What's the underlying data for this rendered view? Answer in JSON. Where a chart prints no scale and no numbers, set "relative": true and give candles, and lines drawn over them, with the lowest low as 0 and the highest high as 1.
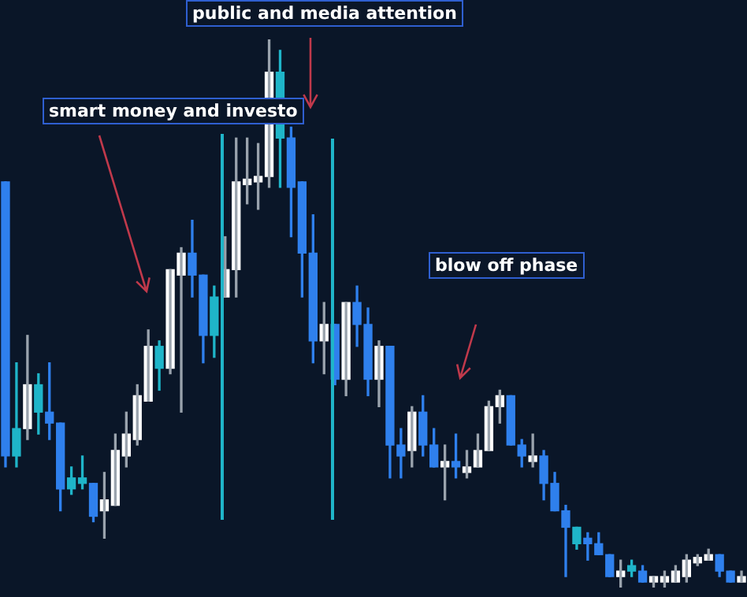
{
  "chart_data": {
    "type": "candlestick",
    "relative": true,
    "categories": [
      null,
      null,
      null,
      null,
      null,
      null,
      null,
      null,
      null,
      null,
      null,
      null,
      null,
      null,
      null,
      null,
      null,
      null,
      null,
      null,
      null,
      null,
      null,
      null,
      null,
      null,
      null,
      null,
      null,
      null,
      null,
      null,
      null,
      null,
      null,
      null,
      null,
      null,
      null,
      null,
      null,
      null,
      null,
      null,
      null,
      null,
      null,
      null,
      null,
      null,
      null,
      null,
      null,
      null,
      null,
      null,
      null,
      null,
      null,
      null,
      null,
      null,
      null,
      null,
      null,
      null,
      null,
      null
    ],
    "ohlc": [
      [
        0.74,
        0.74,
        0.22,
        0.24
      ],
      [
        0.29,
        0.41,
        0.22,
        0.24
      ],
      [
        0.29,
        0.46,
        0.27,
        0.37
      ],
      [
        0.37,
        0.39,
        0.28,
        0.32
      ],
      [
        0.32,
        0.41,
        0.27,
        0.3
      ],
      [
        0.3,
        0.3,
        0.14,
        0.18
      ],
      [
        0.2,
        0.22,
        0.17,
        0.18
      ],
      [
        0.2,
        0.24,
        0.18,
        0.19
      ],
      [
        0.19,
        0.19,
        0.12,
        0.13
      ],
      [
        0.14,
        0.21,
        0.09,
        0.16
      ],
      [
        0.15,
        0.28,
        0.15,
        0.25
      ],
      [
        0.24,
        0.32,
        0.22,
        0.28
      ],
      [
        0.27,
        0.37,
        0.26,
        0.35
      ],
      [
        0.34,
        0.47,
        0.34,
        0.44
      ],
      [
        0.44,
        0.45,
        0.36,
        0.4
      ],
      [
        0.4,
        0.58,
        0.39,
        0.58
      ],
      [
        0.57,
        0.62,
        0.32,
        0.61
      ],
      [
        0.61,
        0.67,
        0.53,
        0.57
      ],
      [
        0.57,
        0.57,
        0.41,
        0.46
      ],
      [
        0.53,
        0.55,
        0.42,
        0.46
      ],
      [
        0.53,
        0.64,
        0.53,
        0.58
      ],
      [
        0.58,
        0.82,
        0.53,
        0.74
      ],
      [
        0.735,
        0.82,
        0.7,
        0.745
      ],
      [
        0.74,
        0.81,
        0.69,
        0.75
      ],
      [
        0.75,
        1.0,
        0.73,
        0.94
      ],
      [
        0.94,
        0.98,
        0.73,
        0.82
      ],
      [
        0.82,
        0.84,
        0.64,
        0.73
      ],
      [
        0.74,
        0.74,
        0.53,
        0.61
      ],
      [
        0.61,
        0.68,
        0.41,
        0.45
      ],
      [
        0.45,
        0.52,
        0.39,
        0.48
      ],
      [
        0.48,
        0.48,
        0.37,
        0.38
      ],
      [
        0.38,
        0.52,
        0.35,
        0.52
      ],
      [
        0.52,
        0.55,
        0.44,
        0.48
      ],
      [
        0.48,
        0.51,
        0.35,
        0.38
      ],
      [
        0.38,
        0.45,
        0.33,
        0.44
      ],
      [
        0.44,
        0.44,
        0.2,
        0.26
      ],
      [
        0.26,
        0.29,
        0.2,
        0.24
      ],
      [
        0.25,
        0.33,
        0.22,
        0.32
      ],
      [
        0.32,
        0.35,
        0.24,
        0.26
      ],
      [
        0.26,
        0.29,
        0.22,
        0.22
      ],
      [
        0.22,
        0.26,
        0.16,
        0.23
      ],
      [
        0.23,
        0.28,
        0.2,
        0.22
      ],
      [
        0.21,
        0.25,
        0.2,
        0.22
      ],
      [
        0.22,
        0.28,
        0.22,
        0.25
      ],
      [
        0.25,
        0.34,
        0.25,
        0.33
      ],
      [
        0.33,
        0.36,
        0.3,
        0.35
      ],
      [
        0.35,
        0.35,
        0.26,
        0.26
      ],
      [
        0.26,
        0.27,
        0.22,
        0.24
      ],
      [
        0.23,
        0.28,
        0.22,
        0.24
      ],
      [
        0.24,
        0.25,
        0.16,
        0.19
      ],
      [
        0.19,
        0.21,
        0.14,
        0.14
      ],
      [
        0.14,
        0.15,
        0.02,
        0.11
      ],
      [
        0.11,
        0.11,
        0.07,
        0.08
      ],
      [
        0.09,
        0.1,
        0.05,
        0.08
      ],
      [
        0.08,
        0.1,
        0.06,
        0.06
      ],
      [
        0.06,
        0.06,
        0.02,
        0.02
      ],
      [
        0.02,
        0.05,
        0.0,
        0.03
      ],
      [
        0.04,
        0.05,
        0.02,
        0.03
      ],
      [
        0.03,
        0.04,
        0.01,
        0.01
      ],
      [
        0.01,
        0.02,
        0.0,
        0.02
      ],
      [
        0.01,
        0.03,
        0.0,
        0.02
      ],
      [
        0.01,
        0.04,
        0.01,
        0.03
      ],
      [
        0.02,
        0.06,
        0.01,
        0.05
      ],
      [
        0.045,
        0.06,
        0.04,
        0.055
      ],
      [
        0.05,
        0.07,
        0.05,
        0.06
      ],
      [
        0.06,
        0.06,
        0.02,
        0.03
      ],
      [
        0.03,
        0.03,
        0.01,
        0.01
      ],
      [
        0.01,
        0.03,
        0.01,
        0.02
      ]
    ],
    "colors": [
      "#2f80ed",
      "#1fb5c9",
      "#ffffff",
      "#1fb5c9",
      "#2f80ed",
      "#2f80ed",
      "#1fb5c9",
      "#1fb5c9",
      "#2f80ed",
      "#ffffff",
      "#ffffff",
      "#ffffff",
      "#ffffff",
      "#ffffff",
      "#1fb5c9",
      "#ffffff",
      "#ffffff",
      "#2f80ed",
      "#2f80ed",
      "#1fb5c9",
      "#ffffff",
      "#ffffff",
      "#ffffff",
      "#ffffff",
      "#ffffff",
      "#1fb5c9",
      "#2f80ed",
      "#2f80ed",
      "#2f80ed",
      "#ffffff",
      "#2f80ed",
      "#ffffff",
      "#2f80ed",
      "#2f80ed",
      "#ffffff",
      "#2f80ed",
      "#2f80ed",
      "#ffffff",
      "#2f80ed",
      "#2f80ed",
      "#ffffff",
      "#2f80ed",
      "#ffffff",
      "#ffffff",
      "#ffffff",
      "#ffffff",
      "#2f80ed",
      "#2f80ed",
      "#ffffff",
      "#2f80ed",
      "#2f80ed",
      "#2f80ed",
      "#1fb5c9",
      "#2f80ed",
      "#2f80ed",
      "#2f80ed",
      "#ffffff",
      "#1fb5c9",
      "#2f80ed",
      "#ffffff",
      "#ffffff",
      "#ffffff",
      "#ffffff",
      "#ffffff",
      "#ffffff",
      "#2f80ed",
      "#2f80ed",
      "#ffffff"
    ],
    "annotations": [
      "public and media attention",
      "smart money and investo",
      "blow off phase"
    ]
  }
}
